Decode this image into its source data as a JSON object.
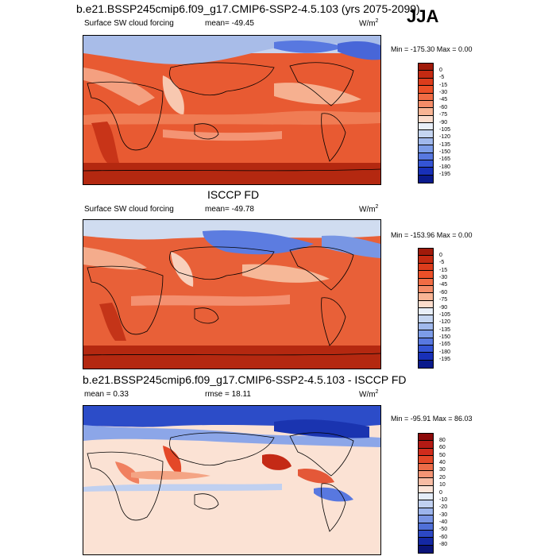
{
  "season": "JJA",
  "panels": [
    {
      "title": "b.e21.BSSP245cmip6.f09_g17.CMIP6-SSP2-4.5.103 (yrs 2075-2099)",
      "left_label": "Surface SW cloud forcing",
      "center_label": "mean= -49.45",
      "units": "W/m",
      "units_sup": "2",
      "minmax": "Min = -175.30 Max =   0.00",
      "colorbar_labels": [
        "0",
        "-5",
        "-15",
        "-30",
        "-45",
        "-60",
        "-75",
        "-90",
        "-105",
        "-120",
        "-135",
        "-150",
        "-165",
        "-180",
        "-195"
      ],
      "colorbar_colors": [
        "#a01a0a",
        "#c42a12",
        "#dc3c1c",
        "#ec5028",
        "#f06c44",
        "#f48c68",
        "#f8b494",
        "#fbdccc",
        "#e8eef8",
        "#c4d4f0",
        "#a0b8ec",
        "#7c9ce8",
        "#5878e0",
        "#3454d4",
        "#1830b8",
        "#0a1a8c"
      ]
    },
    {
      "title": "ISCCP FD",
      "left_label": "Surface SW cloud forcing",
      "center_label": "mean= -49.78",
      "units": "W/m",
      "units_sup": "2",
      "minmax": "Min = -153.96 Max =   0.00",
      "colorbar_labels": [
        "0",
        "-5",
        "-15",
        "-30",
        "-45",
        "-60",
        "-75",
        "-90",
        "-105",
        "-120",
        "-135",
        "-150",
        "-165",
        "-180",
        "-195"
      ],
      "colorbar_colors": [
        "#a01a0a",
        "#c42a12",
        "#dc3c1c",
        "#ec5028",
        "#f06c44",
        "#f48c68",
        "#f8b494",
        "#fbdccc",
        "#e8eef8",
        "#c4d4f0",
        "#a0b8ec",
        "#7c9ce8",
        "#5878e0",
        "#3454d4",
        "#1830b8",
        "#0a1a8c"
      ]
    },
    {
      "title": "b.e21.BSSP245cmip6.f09_g17.CMIP6-SSP2-4.5.103 - ISCCP FD",
      "left_label": "mean =   0.33",
      "center_label": "rmse =  18.11",
      "units": "W/m",
      "units_sup": "2",
      "minmax": "Min = -95.91 Max =  86.03",
      "colorbar_labels": [
        "80",
        "60",
        "50",
        "40",
        "30",
        "20",
        "10",
        "0",
        "-10",
        "-20",
        "-30",
        "-40",
        "-50",
        "-60",
        "-80"
      ],
      "colorbar_colors": [
        "#8c0a0a",
        "#b41a14",
        "#d02c1c",
        "#e44828",
        "#ec6c48",
        "#f49474",
        "#f8bca4",
        "#fce4d8",
        "#e4ecf8",
        "#c0d0f0",
        "#9cb4ec",
        "#7894e4",
        "#5070d8",
        "#2c48c4",
        "#1428a4",
        "#0a1478"
      ]
    }
  ]
}
